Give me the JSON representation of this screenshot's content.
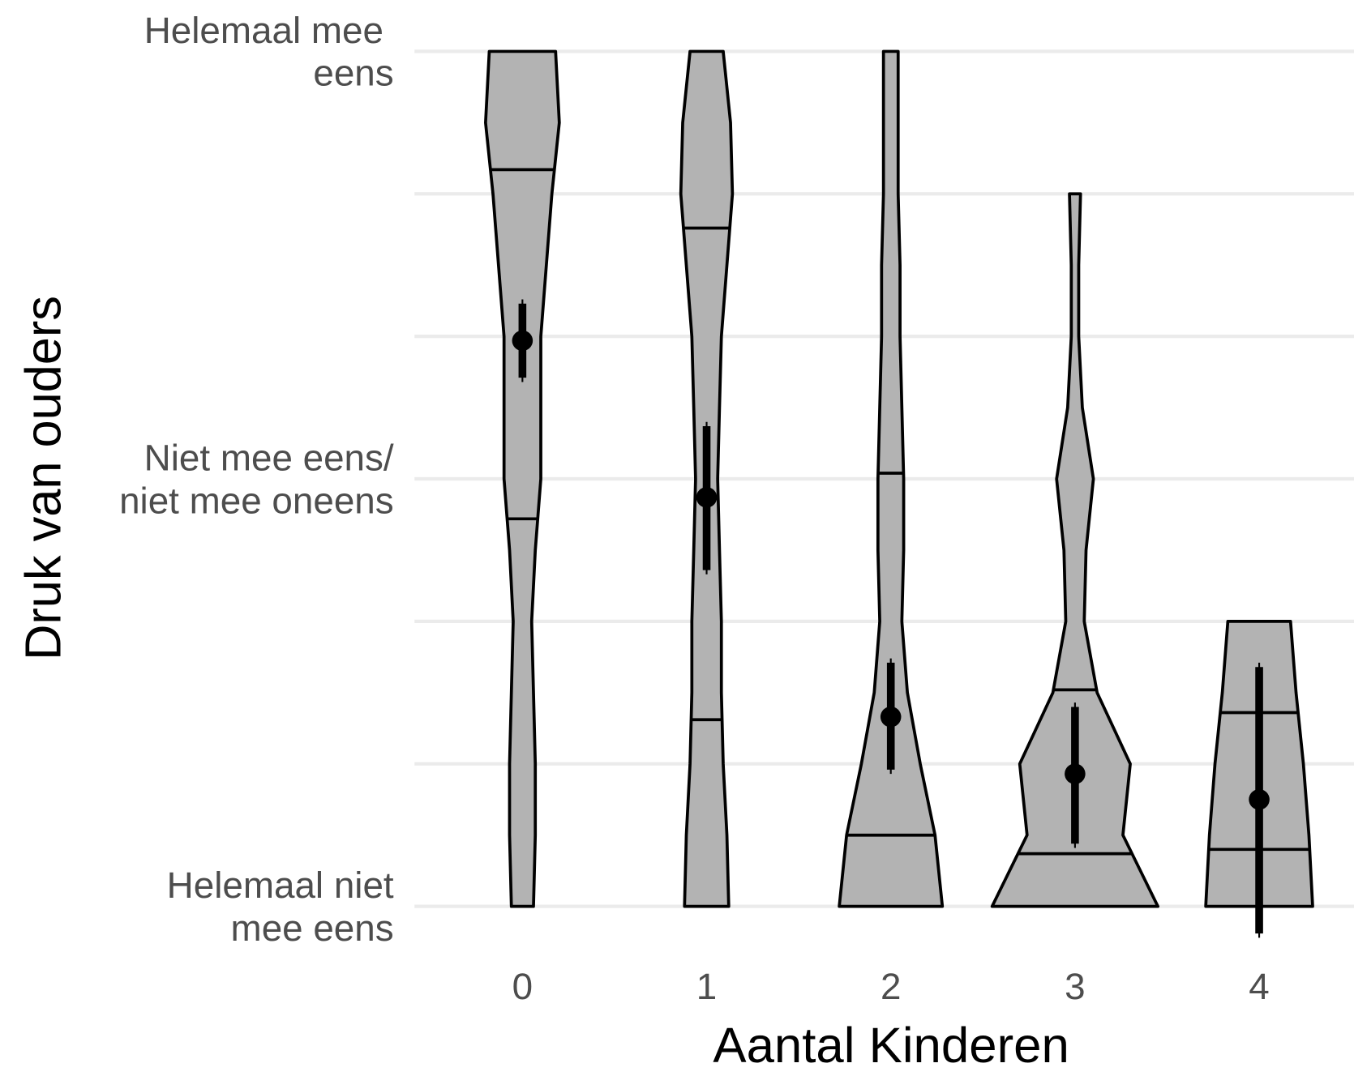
{
  "chart_data": {
    "type": "violin",
    "xlabel": "Aantal Kinderen",
    "ylabel": "Druk van ouders",
    "categories": [
      "0",
      "1",
      "2",
      "3",
      "4"
    ],
    "ylim": [
      0.75,
      7.25
    ],
    "yticks": [
      {
        "value": 1,
        "label": "Helemaal niet\nmee eens"
      },
      2,
      3,
      {
        "value": 4,
        "label": "Niet mee eens/\nniet mee oneens"
      },
      5,
      6,
      {
        "value": 7,
        "label": "Helemaal mee \neens"
      }
    ],
    "grid": true,
    "fill": "#b3b3b3",
    "violins": [
      {
        "y": [
          7,
          6.5,
          6,
          5.5,
          5,
          4.5,
          4,
          3.5,
          3,
          2.5,
          2,
          1.5,
          1
        ],
        "width": [
          0.18,
          0.2,
          0.16,
          0.13,
          0.1,
          0.1,
          0.1,
          0.07,
          0.05,
          0.06,
          0.07,
          0.07,
          0.06
        ],
        "quantiles": [
          6.17,
          3.72
        ],
        "mean": 4.97,
        "ci": [
          4.71,
          5.23
        ],
        "range": [
          4.68,
          5.26
        ]
      },
      {
        "y": [
          7,
          6.5,
          6,
          5.5,
          5,
          4.5,
          4,
          3.5,
          3,
          2.5,
          2,
          1.5,
          1
        ],
        "width": [
          0.09,
          0.13,
          0.14,
          0.11,
          0.08,
          0.07,
          0.06,
          0.07,
          0.08,
          0.08,
          0.09,
          0.11,
          0.12
        ],
        "quantiles": [
          5.76,
          2.31
        ],
        "mean": 3.87,
        "ci": [
          3.36,
          4.37
        ],
        "range": [
          3.33,
          4.4
        ]
      },
      {
        "y": [
          7,
          6.5,
          6,
          5.5,
          5,
          4.5,
          4,
          3.5,
          3,
          2.5,
          2,
          1.5,
          1
        ],
        "width": [
          0.04,
          0.04,
          0.04,
          0.05,
          0.05,
          0.06,
          0.07,
          0.07,
          0.06,
          0.09,
          0.16,
          0.24,
          0.28
        ],
        "quantiles": [
          4.04,
          1.5
        ],
        "mean": 2.33,
        "ci": [
          1.96,
          2.71
        ],
        "range": [
          1.93,
          2.74
        ]
      },
      {
        "y": [
          6,
          5.5,
          5,
          4.5,
          4,
          3.5,
          3,
          2.5,
          2,
          1.5,
          1
        ],
        "width": [
          0.03,
          0.02,
          0.02,
          0.04,
          0.1,
          0.06,
          0.05,
          0.12,
          0.3,
          0.26,
          0.45
        ],
        "quantiles": [
          2.52,
          1.37
        ],
        "mean": 1.93,
        "ci": [
          1.44,
          2.4
        ],
        "range": [
          1.41,
          2.43
        ]
      },
      {
        "y": [
          3,
          2.5,
          2,
          1.5,
          1
        ],
        "width": [
          0.17,
          0.2,
          0.24,
          0.27,
          0.29
        ],
        "quantiles": [
          2.36,
          1.4
        ],
        "mean": 1.75,
        "ci": [
          0.81,
          2.68
        ],
        "range": [
          0.78,
          2.71
        ]
      }
    ]
  }
}
